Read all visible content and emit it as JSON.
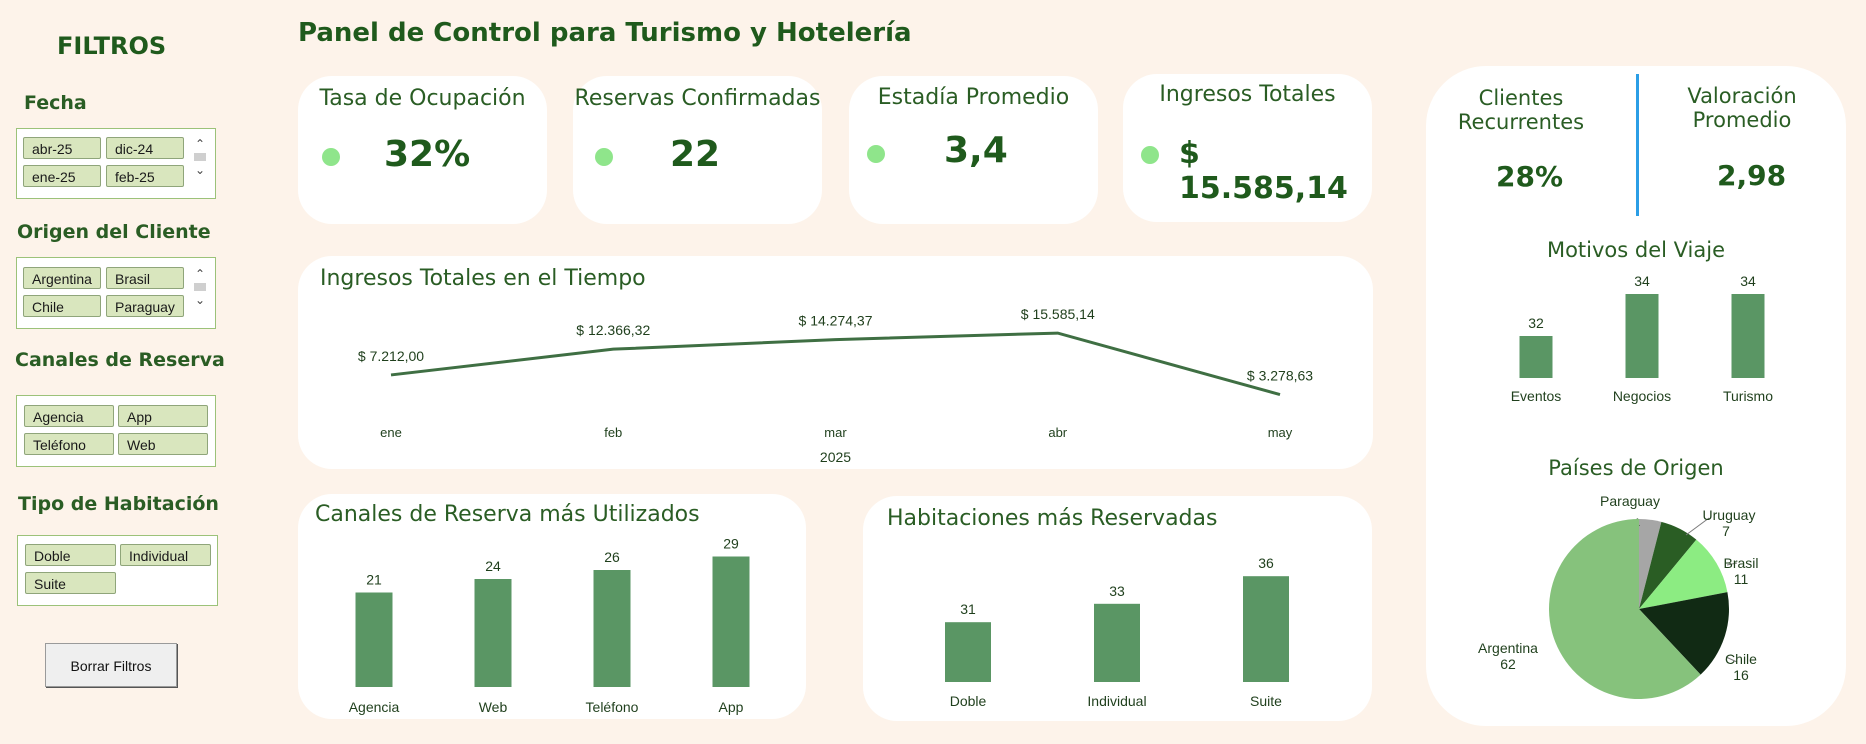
{
  "dashboard": {
    "title": "Panel de Control para Turismo y Hotelería"
  },
  "filters": {
    "title": "FILTROS",
    "fecha": {
      "label": "Fecha",
      "items": [
        "abr-25",
        "dic-24",
        "ene-25",
        "feb-25"
      ]
    },
    "origen": {
      "label": "Origen del Cliente",
      "items": [
        "Argentina",
        "Brasil",
        "Chile",
        "Paraguay"
      ]
    },
    "canales": {
      "label": "Canales de Reserva",
      "items": [
        "Agencia",
        "App",
        "Teléfono",
        "Web"
      ]
    },
    "habitacion": {
      "label": "Tipo de Habitación",
      "items": [
        "Doble",
        "Individual",
        "Suite"
      ]
    },
    "clear_label": "Borrar Filtros"
  },
  "kpis": [
    {
      "label": "Tasa de Ocupación",
      "value": "32%"
    },
    {
      "label": "Reservas Confirmadas",
      "value": "22"
    },
    {
      "label": "Estadía Promedio",
      "value": "3,4"
    },
    {
      "label": "Ingresos Totales",
      "value": "$ 15.585,14"
    }
  ],
  "right_kpis": [
    {
      "label": "Clientes Recurrentes",
      "value": "28%"
    },
    {
      "label": "Valoración Promedio",
      "value": "2,98"
    }
  ],
  "colors": {
    "bar": "#5a9664",
    "line": "#3f6f43",
    "accent_divider": "#2b9ee6",
    "dot": "#8fe58b"
  },
  "chart_data": [
    {
      "type": "line",
      "title": "Ingresos Totales en el Tiempo",
      "categories": [
        "ene",
        "feb",
        "mar",
        "abr",
        "may"
      ],
      "xlabel": "2025",
      "values": [
        7212.0,
        12366.32,
        14274.37,
        15585.14,
        3278.63
      ],
      "labels": [
        "$ 7.212,00",
        "$ 12.366,32",
        "$ 14.274,37",
        "$ 15.585,14",
        "$ 3.278,63"
      ]
    },
    {
      "type": "bar",
      "title": "Canales de Reserva más Utilizados",
      "categories": [
        "Agencia",
        "Web",
        "Teléfono",
        "App"
      ],
      "values": [
        21,
        24,
        26,
        29
      ]
    },
    {
      "type": "bar",
      "title": "Habitaciones más Reservadas",
      "categories": [
        "Doble",
        "Individual",
        "Suite"
      ],
      "values": [
        31,
        33,
        36
      ]
    },
    {
      "type": "bar",
      "title": "Motivos del Viaje",
      "categories": [
        "Eventos",
        "Negocios",
        "Turismo"
      ],
      "values": [
        32,
        34,
        34
      ]
    },
    {
      "type": "pie",
      "title": "Países de Origen",
      "categories": [
        "Paraguay",
        "Uruguay",
        "Brasil",
        "Chile",
        "Argentina"
      ],
      "values": [
        4,
        7,
        11,
        16,
        62
      ],
      "colors": [
        "#a6a6a6",
        "#2a5d24",
        "#8cec82",
        "#112a14",
        "#86c27c"
      ]
    }
  ]
}
